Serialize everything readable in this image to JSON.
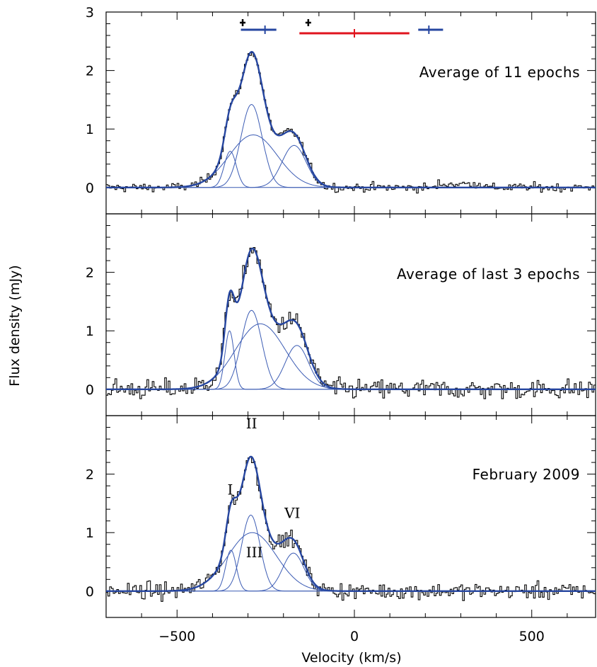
{
  "chart_data": {
    "type": "line",
    "xlabel": "Velocity (km/s)",
    "ylabel": "Flux density (mJy)",
    "xlim": [
      -700,
      680
    ],
    "x_ticks": [
      -500,
      0,
      500
    ],
    "x_tick_labels": [
      "−500",
      "0",
      "500"
    ],
    "colors": {
      "spectrum": "#000000",
      "fit": "#2646a0",
      "component": "#3c5cb4",
      "range_bar": "#e0141e"
    },
    "panels": [
      {
        "title": "Average of 11 epochs",
        "ylim": [
          -0.45,
          3.0
        ],
        "y_ticks": [
          0,
          1,
          2,
          3
        ],
        "y_tick_labels": [
          "0",
          "1",
          "2",
          "3"
        ],
        "noise": 0.07,
        "components": [
          {
            "center": -350,
            "amplitude": 0.62,
            "sigma": 17
          },
          {
            "center": -290,
            "amplitude": 1.42,
            "sigma": 30
          },
          {
            "center": -285,
            "amplitude": 0.9,
            "sigma": 68
          },
          {
            "center": -170,
            "amplitude": 0.72,
            "sigma": 34
          }
        ],
        "markers": [
          {
            "type": "point",
            "color": "black",
            "x": -315
          },
          {
            "type": "point",
            "color": "black",
            "x": -130
          },
          {
            "type": "range",
            "color": "blue",
            "x_min": -320,
            "x_max": -220,
            "center": -252
          },
          {
            "type": "range",
            "color": "red",
            "x_min": -155,
            "x_max": 155,
            "center": 0
          },
          {
            "type": "range",
            "color": "blue",
            "x_min": 180,
            "x_max": 250,
            "center": 210
          }
        ]
      },
      {
        "title": "Average of last 3 epochs",
        "ylim": [
          -0.45,
          3.0
        ],
        "y_ticks": [
          0,
          1,
          2
        ],
        "y_tick_labels": [
          "0",
          "1",
          "2"
        ],
        "noise": 0.16,
        "components": [
          {
            "center": -352,
            "amplitude": 1.0,
            "sigma": 13
          },
          {
            "center": -290,
            "amplitude": 1.35,
            "sigma": 29
          },
          {
            "center": -265,
            "amplitude": 1.12,
            "sigma": 70
          },
          {
            "center": -162,
            "amplitude": 0.75,
            "sigma": 33
          }
        ],
        "markers": []
      },
      {
        "title": "February 2009",
        "ylim": [
          -0.45,
          3.0
        ],
        "y_ticks": [
          0,
          1,
          2
        ],
        "y_tick_labels": [
          "0",
          "1",
          "2"
        ],
        "noise": 0.13,
        "components": [
          {
            "center": -348,
            "amplitude": 0.7,
            "sigma": 15
          },
          {
            "center": -292,
            "amplitude": 1.3,
            "sigma": 26
          },
          {
            "center": -288,
            "amplitude": 1.0,
            "sigma": 68
          },
          {
            "center": -172,
            "amplitude": 0.65,
            "sigma": 30
          }
        ],
        "annotations": [
          {
            "text": "I",
            "x": -350,
            "y": 1.65
          },
          {
            "text": "II",
            "x": -290,
            "y": 2.78
          },
          {
            "text": "III",
            "x": -282,
            "y": 0.58
          },
          {
            "text": "VI",
            "x": -175,
            "y": 1.25
          }
        ],
        "markers": []
      }
    ]
  }
}
